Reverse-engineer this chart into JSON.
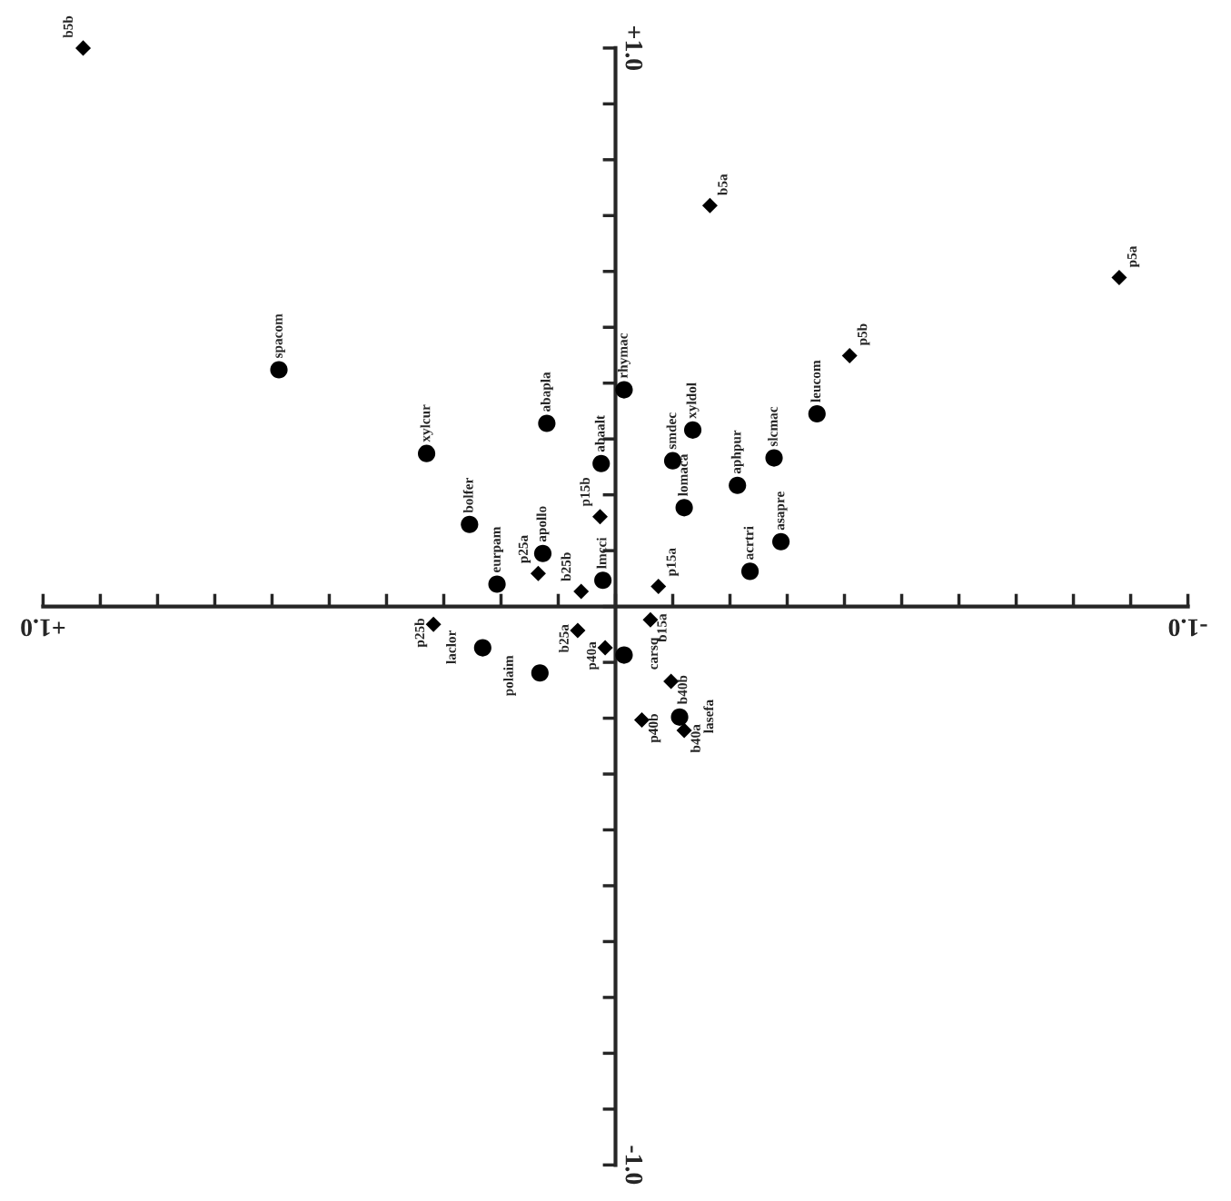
{
  "chart_data": {
    "type": "scatter",
    "xlim": [
      1.0,
      -1.0
    ],
    "ylim": [
      -1.0,
      1.0
    ],
    "xticks": [
      {
        "value": 1.0,
        "label": "+1.0"
      },
      {
        "value": 0.9,
        "label": null
      },
      {
        "value": 0.8,
        "label": null
      },
      {
        "value": 0.7,
        "label": null
      },
      {
        "value": 0.6,
        "label": null
      },
      {
        "value": 0.5,
        "label": null
      },
      {
        "value": 0.4,
        "label": null
      },
      {
        "value": 0.3,
        "label": null
      },
      {
        "value": 0.2,
        "label": null
      },
      {
        "value": 0.1,
        "label": null
      },
      {
        "value": 0.0,
        "label": null
      },
      {
        "value": -0.1,
        "label": null
      },
      {
        "value": -0.2,
        "label": null
      },
      {
        "value": -0.3,
        "label": null
      },
      {
        "value": -0.4,
        "label": null
      },
      {
        "value": -0.5,
        "label": null
      },
      {
        "value": -0.6,
        "label": null
      },
      {
        "value": -0.7,
        "label": null
      },
      {
        "value": -0.8,
        "label": null
      },
      {
        "value": -0.9,
        "label": null
      },
      {
        "value": -1.0,
        "label": "-1.0"
      }
    ],
    "yticks": [
      {
        "value": 1.0,
        "label": "+1.0"
      },
      {
        "value": 0.9,
        "label": null
      },
      {
        "value": 0.8,
        "label": null
      },
      {
        "value": 0.7,
        "label": null
      },
      {
        "value": 0.6,
        "label": null
      },
      {
        "value": 0.5,
        "label": null
      },
      {
        "value": 0.4,
        "label": null
      },
      {
        "value": 0.3,
        "label": null
      },
      {
        "value": 0.2,
        "label": null
      },
      {
        "value": 0.1,
        "label": null
      },
      {
        "value": 0.0,
        "label": null
      },
      {
        "value": -0.1,
        "label": null
      },
      {
        "value": -0.2,
        "label": null
      },
      {
        "value": -0.3,
        "label": null
      },
      {
        "value": -0.4,
        "label": null
      },
      {
        "value": -0.5,
        "label": null
      },
      {
        "value": -0.6,
        "label": null
      },
      {
        "value": -0.7,
        "label": null
      },
      {
        "value": -0.8,
        "label": null
      },
      {
        "value": -0.9,
        "label": null
      },
      {
        "value": -1.0,
        "label": "-1.0"
      }
    ],
    "grid": false,
    "legend": false,
    "series": [
      {
        "marker": "diamond",
        "color": "#000000",
        "x": [
          0.93,
          -0.165,
          -0.88,
          -0.409,
          0.027,
          0.135,
          0.06,
          -0.075,
          0.318,
          0.066,
          0.018,
          -0.061,
          -0.097,
          -0.046,
          -0.12
        ],
        "values": [
          1.0,
          0.718,
          0.589,
          0.449,
          0.161,
          0.059,
          0.027,
          0.036,
          -0.032,
          -0.043,
          -0.074,
          -0.024,
          -0.134,
          -0.203,
          -0.222
        ]
      },
      {
        "marker": "circle",
        "color": "#000000",
        "x": [
          0.588,
          0.33,
          0.12,
          0.255,
          0.207,
          0.127,
          0.022,
          0.025,
          -0.015,
          -0.1,
          -0.135,
          -0.12,
          -0.213,
          -0.277,
          -0.352,
          -0.289,
          -0.235,
          0.232,
          0.132,
          -0.015,
          -0.112
        ],
        "values": [
          0.424,
          0.274,
          0.328,
          0.147,
          0.04,
          0.095,
          0.047,
          0.256,
          0.388,
          0.261,
          0.316,
          0.177,
          0.217,
          0.266,
          0.345,
          0.116,
          0.063,
          -0.074,
          -0.119,
          -0.087,
          -0.198
        ]
      }
    ],
    "annotations": [
      {
        "text": "b5b",
        "x": 0.93,
        "y": 1.0
      },
      {
        "text": "b5a",
        "x": -0.165,
        "y": 0.718
      },
      {
        "text": "p5a",
        "x": -0.88,
        "y": 0.589
      },
      {
        "text": "p5b",
        "x": -0.409,
        "y": 0.449
      },
      {
        "text": "p15b",
        "x": 0.027,
        "y": 0.161
      },
      {
        "text": "p25a",
        "x": 0.135,
        "y": 0.059
      },
      {
        "text": "b25b",
        "x": 0.06,
        "y": 0.027
      },
      {
        "text": "p15a",
        "x": -0.075,
        "y": 0.036
      },
      {
        "text": "p25b",
        "x": 0.318,
        "y": -0.032
      },
      {
        "text": "b25a",
        "x": 0.066,
        "y": -0.043
      },
      {
        "text": "p40a",
        "x": 0.018,
        "y": -0.074
      },
      {
        "text": "b15a",
        "x": -0.061,
        "y": -0.024
      },
      {
        "text": "b40b",
        "x": -0.097,
        "y": -0.134
      },
      {
        "text": "p40b",
        "x": -0.046,
        "y": -0.203
      },
      {
        "text": "b40a",
        "x": -0.12,
        "y": -0.222
      },
      {
        "text": "spacom",
        "x": 0.588,
        "y": 0.424
      },
      {
        "text": "xylcur",
        "x": 0.33,
        "y": 0.274
      },
      {
        "text": "abapla",
        "x": 0.12,
        "y": 0.328
      },
      {
        "text": "bolfer",
        "x": 0.255,
        "y": 0.147
      },
      {
        "text": "eurpam",
        "x": 0.207,
        "y": 0.04
      },
      {
        "text": "apollo",
        "x": 0.127,
        "y": 0.095
      },
      {
        "text": "lmcci",
        "x": 0.022,
        "y": 0.047
      },
      {
        "text": "abaalt",
        "x": 0.025,
        "y": 0.256
      },
      {
        "text": "rhymac",
        "x": -0.015,
        "y": 0.388
      },
      {
        "text": "smdec",
        "x": -0.1,
        "y": 0.261
      },
      {
        "text": "xyldol",
        "x": -0.135,
        "y": 0.316
      },
      {
        "text": "lomaca",
        "x": -0.12,
        "y": 0.177
      },
      {
        "text": "aphpur",
        "x": -0.213,
        "y": 0.217
      },
      {
        "text": "slcmac",
        "x": -0.277,
        "y": 0.266
      },
      {
        "text": "leucom",
        "x": -0.352,
        "y": 0.345
      },
      {
        "text": "asapre",
        "x": -0.289,
        "y": 0.116
      },
      {
        "text": "acrtri",
        "x": -0.235,
        "y": 0.063
      },
      {
        "text": "laclor",
        "x": 0.232,
        "y": -0.074
      },
      {
        "text": "polaim",
        "x": 0.132,
        "y": -0.119
      },
      {
        "text": "carsq",
        "x": -0.015,
        "y": -0.087
      },
      {
        "text": "lasefa",
        "x": -0.112,
        "y": -0.198
      }
    ]
  }
}
